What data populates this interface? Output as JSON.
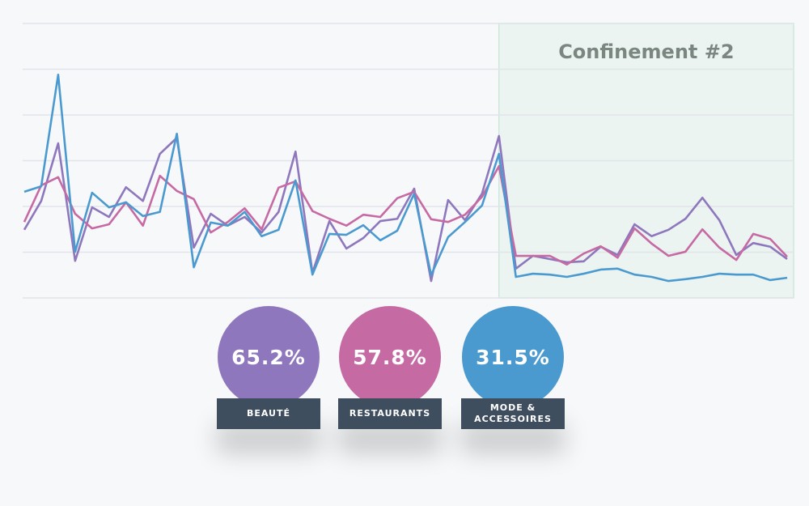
{
  "chart_data": {
    "type": "line",
    "annotation": {
      "text": "Confinement #2",
      "from_index": 28
    },
    "categories": [
      null,
      null,
      null,
      null,
      null,
      null,
      null,
      null,
      null,
      null,
      null,
      null,
      null,
      null,
      null,
      null,
      null,
      null,
      null,
      null,
      null,
      null,
      null,
      null,
      null,
      null,
      null,
      null,
      null,
      null,
      null,
      null,
      null,
      null,
      null,
      null,
      null,
      null,
      null,
      null,
      null,
      null,
      null,
      null,
      null,
      null
    ],
    "ylim": [
      0,
      6
    ],
    "yticks": [
      0,
      1,
      2,
      3,
      4,
      5,
      6
    ],
    "grid": true,
    "series": [
      {
        "name": "BEAUTÉ",
        "color": "#8e77bd",
        "values": [
          1.49,
          2.12,
          3.38,
          0.81,
          1.98,
          1.77,
          2.42,
          2.12,
          3.15,
          3.5,
          1.1,
          1.84,
          1.58,
          1.77,
          1.43,
          1.88,
          3.2,
          0.55,
          1.68,
          1.08,
          1.31,
          1.68,
          1.73,
          2.39,
          0.37,
          2.14,
          1.7,
          2.28,
          3.54,
          0.64,
          0.92,
          0.85,
          0.78,
          0.8,
          1.12,
          0.94,
          1.61,
          1.35,
          1.49,
          1.73,
          2.19,
          1.7,
          0.94,
          1.2,
          1.12,
          0.85
        ]
      },
      {
        "name": "RESTAURANTS",
        "color": "#c66aa3",
        "values": [
          1.66,
          2.46,
          2.64,
          1.84,
          1.52,
          1.61,
          2.09,
          1.58,
          2.67,
          2.34,
          2.16,
          1.43,
          1.66,
          1.96,
          1.5,
          2.41,
          2.55,
          1.9,
          1.73,
          1.58,
          1.82,
          1.77,
          2.18,
          2.32,
          1.72,
          1.66,
          1.82,
          2.21,
          2.88,
          0.92,
          0.92,
          0.92,
          0.73,
          0.97,
          1.13,
          0.88,
          1.52,
          1.19,
          0.92,
          1.01,
          1.5,
          1.1,
          0.83,
          1.4,
          1.29,
          0.9
        ]
      },
      {
        "name": "MODE & ACCESSOIRES",
        "color": "#4a9ad0",
        "values": [
          2.32,
          2.44,
          4.88,
          1.01,
          2.3,
          1.98,
          2.09,
          1.79,
          1.88,
          3.59,
          0.67,
          1.65,
          1.58,
          1.88,
          1.35,
          1.49,
          2.57,
          0.51,
          1.4,
          1.38,
          1.59,
          1.26,
          1.47,
          2.28,
          0.5,
          1.33,
          1.66,
          2.02,
          3.15,
          0.46,
          0.53,
          0.51,
          0.46,
          0.53,
          0.62,
          0.64,
          0.51,
          0.46,
          0.37,
          0.41,
          0.46,
          0.53,
          0.51,
          0.51,
          0.39,
          0.44
        ]
      }
    ],
    "badges": {
      "values": [
        65.2,
        57.8,
        31.5
      ],
      "value_labels": [
        "65.2%",
        "57.8%",
        "31.5%"
      ]
    }
  }
}
